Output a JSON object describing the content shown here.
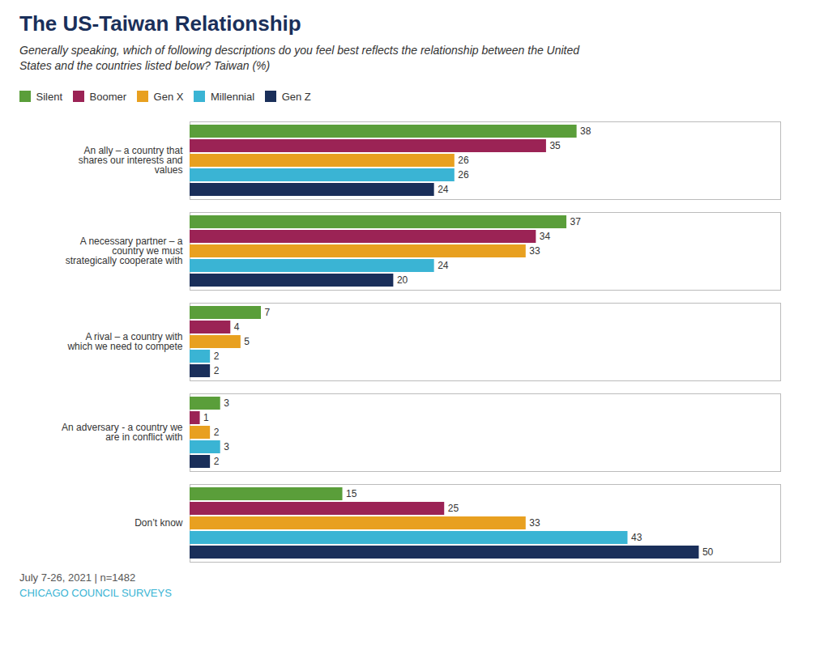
{
  "chart_data": {
    "type": "bar",
    "orientation": "horizontal",
    "title": "The US-Taiwan Relationship",
    "subtitle": "Generally speaking, which of following descriptions do you feel best reflects the relationship between the United States and the countries listed below? Taiwan (%)",
    "categories": [
      "An ally – a country that\nshares our interests and\nvalues",
      "A necessary partner – a\ncountry we must\nstrategically cooperate with",
      "A rival – a country with\nwhich we need to compete",
      "An adversary - a country we\nare in conflict with",
      "Don’t know"
    ],
    "series": [
      {
        "name": "Silent",
        "color": "#5a9e3a",
        "values": [
          38,
          37,
          7,
          3,
          15
        ]
      },
      {
        "name": "Boomer",
        "color": "#9b2355",
        "values": [
          35,
          34,
          4,
          1,
          25
        ]
      },
      {
        "name": "Gen X",
        "color": "#e8a020",
        "values": [
          26,
          33,
          5,
          2,
          33
        ]
      },
      {
        "name": "Millennial",
        "color": "#3ab4d4",
        "values": [
          26,
          24,
          2,
          3,
          43
        ]
      },
      {
        "name": "Gen Z",
        "color": "#1a2f5a",
        "values": [
          24,
          20,
          2,
          2,
          50
        ]
      }
    ],
    "xlim": [
      0,
      58
    ],
    "grid": false,
    "legend": "upper left",
    "data_labels": true,
    "tick_labels": "y",
    "annotations": [
      "July 7-26, 2021 | n=1482",
      "CHICAGO COUNCIL SURVEYS"
    ]
  }
}
